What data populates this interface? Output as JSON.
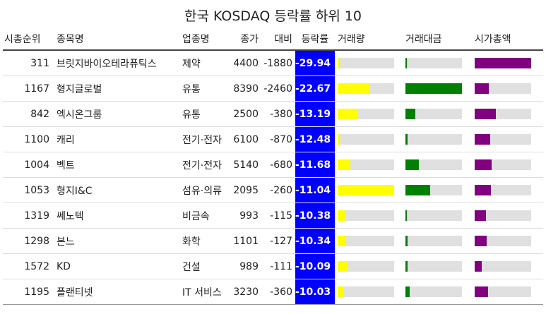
{
  "title": "한국 KOSDAQ 등락률 하위 10",
  "colors": {
    "rate_bg": "#0000ff",
    "volume": "#ffff00",
    "amount": "#008000",
    "market_cap": "#800080",
    "track": "#e0e0e0"
  },
  "chart_data": {
    "type": "table",
    "title": "한국 KOSDAQ 등락률 하위 10",
    "columns": [
      "시총순위",
      "종목명",
      "업종명",
      "종가",
      "대비",
      "등락률",
      "거래량",
      "거래대금",
      "시가총액"
    ],
    "rows": [
      {
        "rank": "311",
        "name": "브릿지바이오테라퓨틱스",
        "sector": "제약",
        "price": "4400",
        "diff": "-1880",
        "rate": "-29.94",
        "volume": 0.03,
        "amount": 0.02,
        "market_cap": 1.0
      },
      {
        "rank": "1167",
        "name": "형지글로벌",
        "sector": "유통",
        "price": "8390",
        "diff": "-2460",
        "rate": "-22.67",
        "volume": 0.58,
        "amount": 1.0,
        "market_cap": 0.25
      },
      {
        "rank": "842",
        "name": "엑시온그룹",
        "sector": "유통",
        "price": "2500",
        "diff": "-380",
        "rate": "-13.19",
        "volume": 0.35,
        "amount": 0.18,
        "market_cap": 0.38
      },
      {
        "rank": "1100",
        "name": "캐리",
        "sector": "전기·전자",
        "price": "6100",
        "diff": "-870",
        "rate": "-12.48",
        "volume": 0.03,
        "amount": 0.04,
        "market_cap": 0.27
      },
      {
        "rank": "1004",
        "name": "벡트",
        "sector": "전기·전자",
        "price": "5140",
        "diff": "-680",
        "rate": "-11.68",
        "volume": 0.22,
        "amount": 0.24,
        "market_cap": 0.3
      },
      {
        "rank": "1053",
        "name": "형지I&C",
        "sector": "섬유·의류",
        "price": "2095",
        "diff": "-260",
        "rate": "-11.04",
        "volume": 1.0,
        "amount": 0.44,
        "market_cap": 0.29
      },
      {
        "rank": "1319",
        "name": "쎄노텍",
        "sector": "비금속",
        "price": "993",
        "diff": "-115",
        "rate": "-10.38",
        "volume": 0.12,
        "amount": 0.02,
        "market_cap": 0.2
      },
      {
        "rank": "1298",
        "name": "본느",
        "sector": "화학",
        "price": "1101",
        "diff": "-127",
        "rate": "-10.34",
        "volume": 0.14,
        "amount": 0.04,
        "market_cap": 0.21
      },
      {
        "rank": "1572",
        "name": "KD",
        "sector": "건설",
        "price": "989",
        "diff": "-111",
        "rate": "-10.09",
        "volume": 0.16,
        "amount": 0.04,
        "market_cap": 0.13
      },
      {
        "rank": "1195",
        "name": "플랜티넷",
        "sector": "IT 서비스",
        "price": "3230",
        "diff": "-360",
        "rate": "-10.03",
        "volume": 0.1,
        "amount": 0.07,
        "market_cap": 0.24
      }
    ]
  }
}
